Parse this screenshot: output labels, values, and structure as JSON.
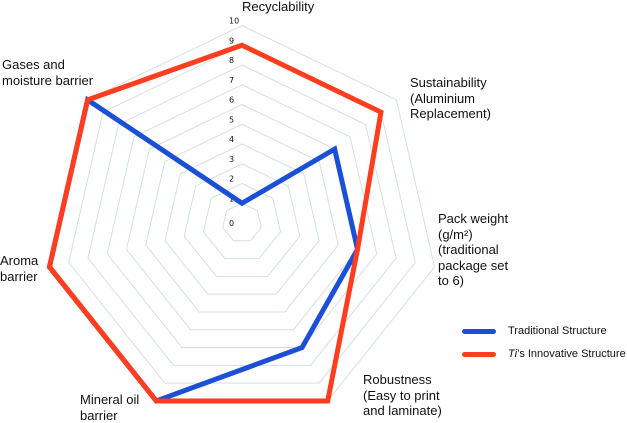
{
  "chart_data": {
    "type": "radar",
    "title": "",
    "axes": [
      "Recyclability",
      "Sustainability\n(Aluminium\nReplacement)",
      "Pack weight\n(g/m²)\n(traditional\npackage set\nto 6)",
      "Robustness\n(Easy to print\nand laminate)",
      "Mineral oil\nbarrier",
      "Aroma\nbarrier",
      "Gases and\nmoisture barrier"
    ],
    "range": [
      0,
      10
    ],
    "ticks": [
      "0",
      "1",
      "2",
      "3",
      "4",
      "5",
      "6",
      "7",
      "8",
      "9",
      "10"
    ],
    "grid": true,
    "legend_position": "bottom-right",
    "series": [
      {
        "name": "Traditional Structure",
        "name_prefix_italic": "",
        "color": "#1A4FD6",
        "values": [
          1,
          6,
          6,
          7,
          10,
          10,
          10
        ]
      },
      {
        "name": "’s Innovative Structure",
        "name_prefix_italic": "Ti",
        "color": "#FF3D1F",
        "values": [
          9,
          9,
          6,
          10,
          10,
          10,
          10
        ]
      }
    ]
  }
}
